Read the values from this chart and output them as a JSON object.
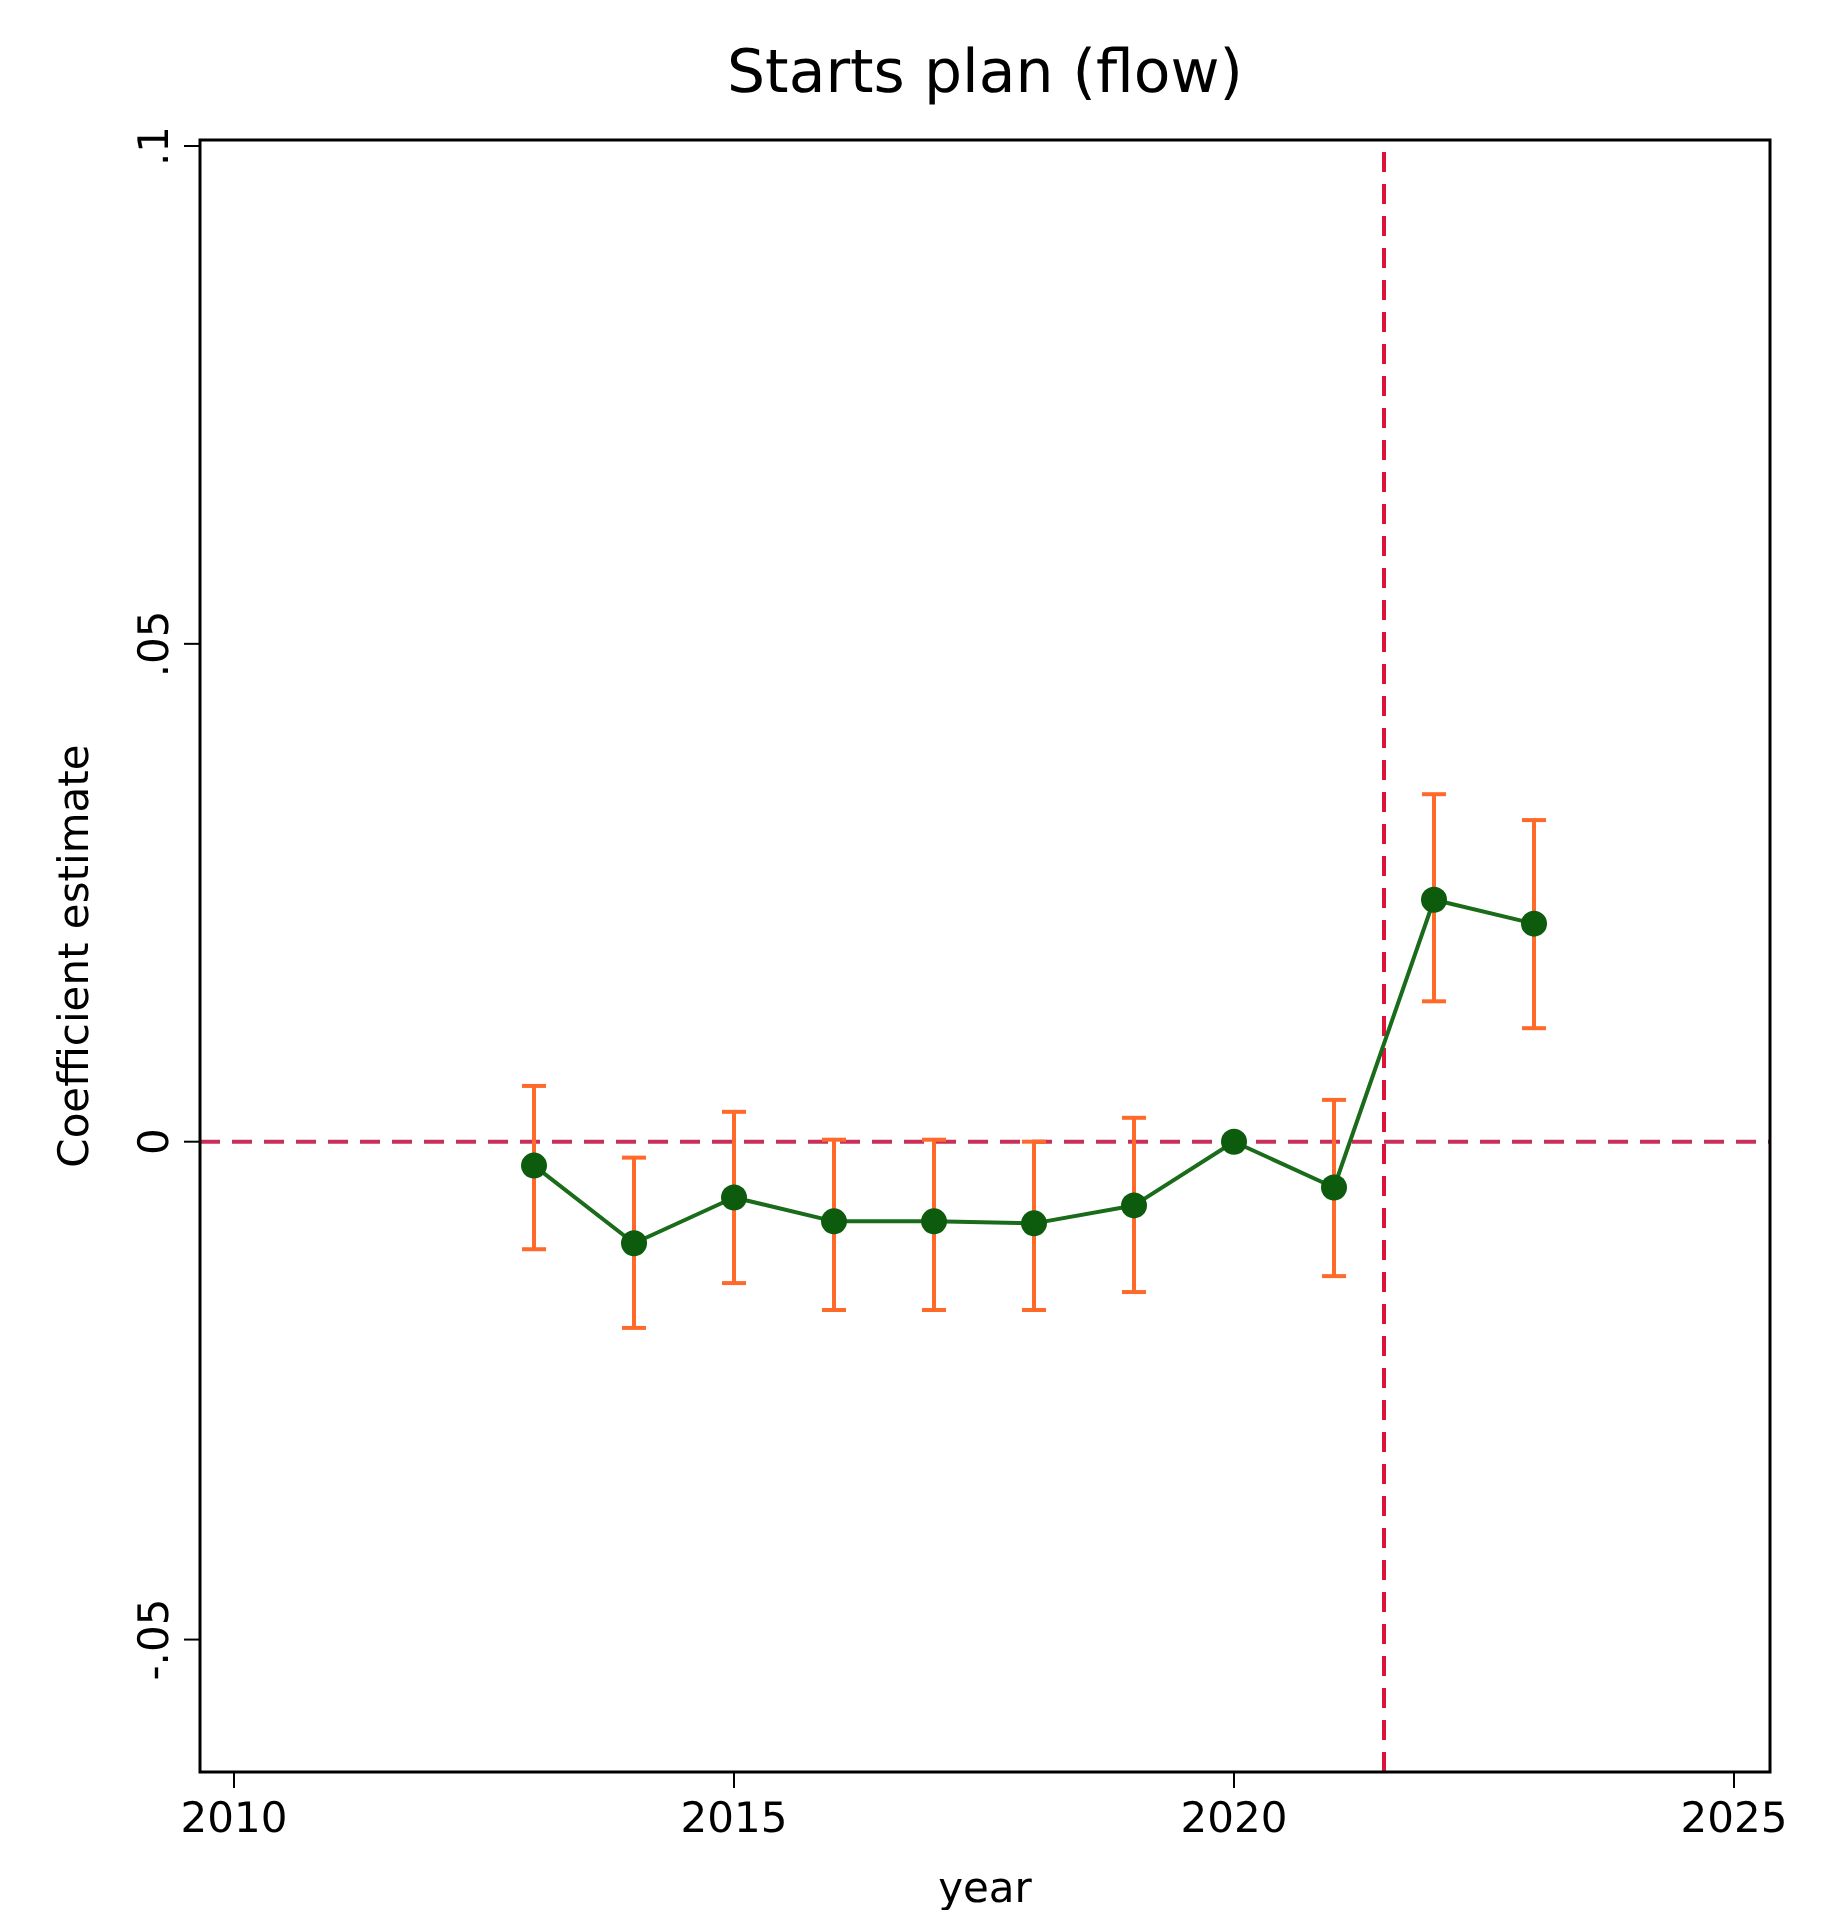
{
  "chart_data": {
    "type": "line",
    "title": "Starts plan (flow)",
    "xlabel": "year",
    "ylabel": "Coefficient estimate",
    "x": [
      2013,
      2014,
      2015,
      2016,
      2017,
      2018,
      2019,
      2020,
      2021,
      2022,
      2023
    ],
    "series": [
      {
        "color": "#1a6b1a",
        "values": [
          -0.0024,
          -0.0102,
          -0.0056,
          -0.008,
          -0.008,
          -0.0082,
          -0.0064,
          0,
          -0.0046,
          0.0243,
          0.0219
        ],
        "errors": [
          [
            -0.0108,
            0.0056
          ],
          [
            -0.0187,
            -0.0016
          ],
          [
            -0.0142,
            0.003
          ],
          [
            -0.0169,
            0.0002
          ],
          [
            -0.0169,
            0.0002
          ],
          [
            -0.0169,
            0.0
          ],
          [
            -0.0151,
            0.0024
          ],
          null,
          [
            -0.0135,
            0.0042
          ],
          [
            0.0141,
            0.0349
          ],
          [
            0.0114,
            0.0323
          ]
        ]
      }
    ],
    "marker": "circle",
    "line_style": "solid",
    "grid": false,
    "xlim": [
      2009.66,
      2025.36
    ],
    "xticks": [
      2010,
      2015,
      2020,
      2025
    ],
    "ylim": [
      -0.0633,
      0.1006
    ],
    "yticks": [
      {
        "value": -0.05,
        "label": "-.05"
      },
      {
        "value": 0,
        "label": "0"
      },
      {
        "value": 0.05,
        "label": ".05"
      },
      {
        "value": 0.1,
        "label": ".1"
      }
    ],
    "ref_lines": [
      {
        "axis": "y",
        "value": 0,
        "color": "#c8305a",
        "line_style": "dashed"
      },
      {
        "axis": "x",
        "value": 2021.5,
        "color": "#dc143c",
        "line_style": "dashed"
      }
    ]
  }
}
